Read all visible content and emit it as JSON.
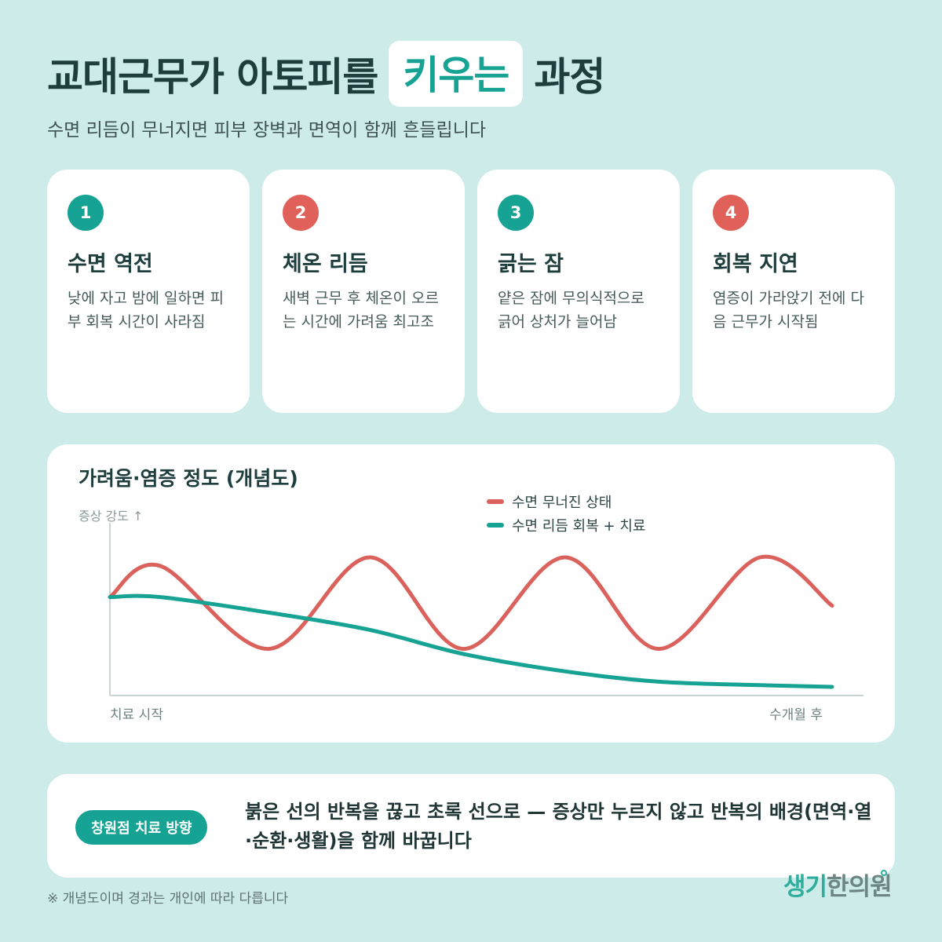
{
  "header": {
    "title_before": "교대근무가 아토피를",
    "title_highlight": "키우는",
    "title_after": "과정",
    "subtitle": "수면 리듬이 무너지면 피부 장벽과 면역이 함께 흔들립니다"
  },
  "steps": [
    {
      "number": "1",
      "title": "수면 역전",
      "desc": "낮에 자고 밤에 일하면 피부 회복 시간이 사라짐",
      "color": "#17a393"
    },
    {
      "number": "2",
      "title": "체온 리듬",
      "desc": "새벽 근무 후 체온이 오르는 시간에 가려움 최고조",
      "color": "#e0605a"
    },
    {
      "number": "3",
      "title": "긁는 잠",
      "desc": "얕은 잠에 무의식적으로 긁어 상처가 늘어남",
      "color": "#17a393"
    },
    {
      "number": "4",
      "title": "회복 지연",
      "desc": "염증이 가라앉기 전에 다음 근무가 시작됨",
      "color": "#e0605a"
    }
  ],
  "chart_data": {
    "type": "line",
    "title": "가려움·염증 정도 (개념도)",
    "ylabel": "증상 강도 ↑",
    "x_start_label": "치료 시작",
    "x_end_label": "수개월 후",
    "legend_placement": "top-right",
    "grid": false,
    "x": [
      0,
      0.07,
      0.22,
      0.36,
      0.49,
      0.63,
      0.76,
      0.9,
      1.0
    ],
    "series": [
      {
        "name": "수면 무너진 상태",
        "color": "#db625c",
        "values": [
          0.57,
          0.75,
          0.27,
          0.8,
          0.27,
          0.8,
          0.27,
          0.8,
          0.52
        ]
      },
      {
        "name": "수면 리듬 회복 + 치료",
        "color": "#17a393",
        "values": [
          0.57,
          0.57,
          0.48,
          0.38,
          0.24,
          0.14,
          0.08,
          0.06,
          0.05
        ]
      }
    ],
    "ylim": [
      0,
      1
    ],
    "xlim": [
      0,
      1
    ]
  },
  "note": {
    "pill": "창원점 치료 방향",
    "text": "붉은 선의 반복을 끊고 초록 선으로 — 증상만 누르지 않고 반복의 배경(면역·열·순환·생활)을 함께 바꿉니다"
  },
  "footnote": "※ 개념도이며 경과는 개인에 따라 다릅니다",
  "logo": {
    "part1": "생기",
    "part2": "한의원"
  },
  "colors": {
    "background": "#cdebe9",
    "accent": "#17a393",
    "warning": "#e0605a"
  }
}
